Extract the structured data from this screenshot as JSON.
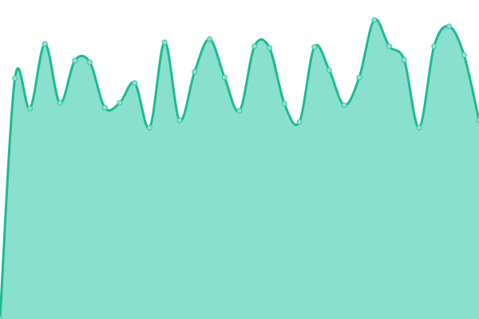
{
  "chart_data": {
    "type": "area",
    "x": [
      0,
      1,
      2,
      3,
      4,
      5,
      6,
      7,
      8,
      9,
      10,
      11,
      12,
      13,
      14,
      15,
      16,
      17,
      18,
      19,
      20,
      21,
      22,
      23,
      24,
      25,
      26,
      27,
      28,
      29,
      30,
      31,
      32
    ],
    "values": [
      0,
      302,
      264,
      345,
      271,
      324,
      322,
      265,
      271,
      296,
      240,
      347,
      249,
      310,
      351,
      303,
      261,
      342,
      340,
      270,
      247,
      341,
      312,
      268,
      303,
      375,
      342,
      325,
      240,
      342,
      367,
      331,
      249
    ],
    "ylim": [
      0,
      400
    ],
    "grid": false,
    "axes": false,
    "legend": "none",
    "colors": {
      "line": "#1dba93",
      "fill": "#89e0cf",
      "point_fill": "#8fe2d1",
      "point_stroke": "#3dc5a6"
    }
  }
}
